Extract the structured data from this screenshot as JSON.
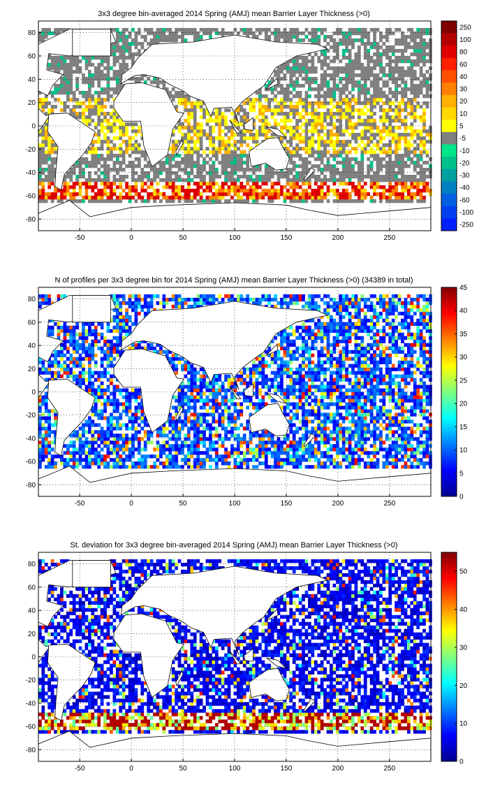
{
  "chart_data": [
    {
      "type": "heatmap",
      "title": "3x3 degree bin-averaged 2014 Spring (AMJ) mean Barrier Layer Thickness (>0)",
      "xlim": [
        -90,
        290
      ],
      "ylim": [
        -90,
        90
      ],
      "x_ticks": [
        -50,
        0,
        50,
        100,
        150,
        200,
        250
      ],
      "y_ticks": [
        80,
        60,
        40,
        20,
        0,
        -20,
        -40,
        -60,
        -80
      ],
      "grid": true,
      "colorbar": {
        "kind": "discrete",
        "labels": [
          "250",
          "100",
          "80",
          "60",
          "40",
          "30",
          "20",
          "10",
          "5",
          "-5",
          "-10",
          "-20",
          "-30",
          "-40",
          "-60",
          "-100",
          "-250"
        ],
        "colors": [
          "#800000",
          "#b50000",
          "#e00000",
          "#ff2000",
          "#ff5000",
          "#ff8000",
          "#ffb000",
          "#ffd800",
          "#ffff00",
          "#808080",
          "#00e58a",
          "#00c08a",
          "#00a0a0",
          "#0080c0",
          "#0060e0",
          "#0040f0",
          "#0020ff"
        ]
      },
      "pattern": "gray bins near zero across open ocean, yellow-orange in subtropics, red band near -55 latitude"
    },
    {
      "type": "heatmap",
      "title": "N of profiles per 3x3 degree bin for 2014 Spring (AMJ) mean Barrier Layer Thickness (>0) (34389 in total)",
      "xlim": [
        -90,
        290
      ],
      "ylim": [
        -90,
        90
      ],
      "x_ticks": [
        -50,
        0,
        50,
        100,
        150,
        200,
        250
      ],
      "y_ticks": [
        80,
        60,
        40,
        20,
        0,
        -20,
        -40,
        -60,
        -80
      ],
      "grid": true,
      "colorbar": {
        "kind": "continuous",
        "min": 0,
        "max": 45,
        "ticks": [
          45,
          40,
          35,
          30,
          25,
          20,
          15,
          10,
          5,
          0
        ]
      },
      "pattern": "mostly 1-10 profiles (blue) with scattered higher counts"
    },
    {
      "type": "heatmap",
      "title": "St. deviation for 3x3 degree bin-averaged 2014 Spring (AMJ) mean Barrier Layer Thickness (>0)",
      "xlim": [
        -90,
        290
      ],
      "ylim": [
        -90,
        90
      ],
      "x_ticks": [
        -50,
        0,
        50,
        100,
        150,
        200,
        250
      ],
      "y_ticks": [
        80,
        60,
        40,
        20,
        0,
        -20,
        -40,
        -60,
        -80
      ],
      "grid": true,
      "colorbar": {
        "kind": "continuous",
        "min": 0,
        "max": 55,
        "ticks": [
          50,
          40,
          30,
          20,
          10,
          0
        ]
      },
      "pattern": "mostly low (dark blue) with high values in the Southern Ocean band and North Atlantic"
    }
  ]
}
